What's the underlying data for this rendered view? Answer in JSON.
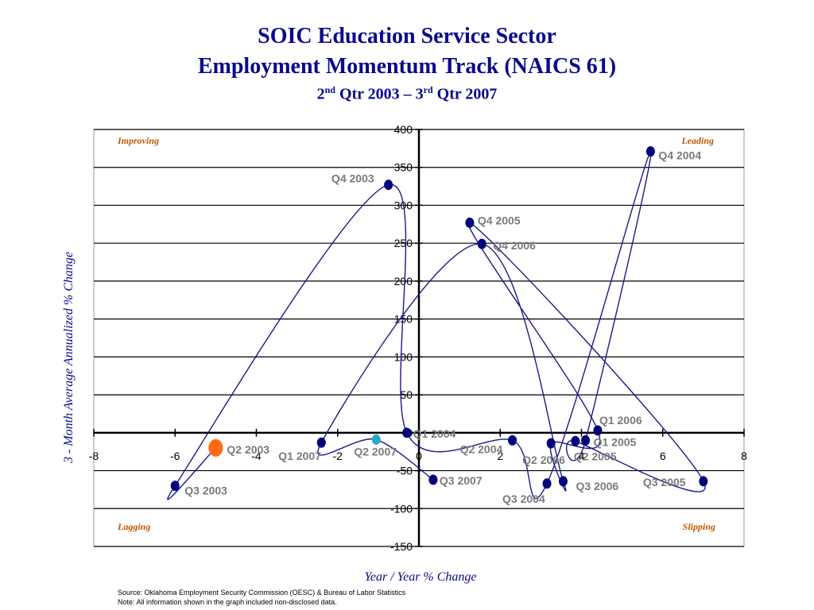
{
  "title": {
    "line1": "SOIC Education Service Sector",
    "line2": "Employment Momentum Track (NAICS 61)",
    "line3_a": "2",
    "line3_sup_a": "nd",
    "line3_b": " Qtr 2003 – 3",
    "line3_sup_b": "rd",
    "line3_c": " Qtr 2007"
  },
  "chart_data": {
    "type": "scatter",
    "xlabel": "Year / Year % Change",
    "ylabel": "3 - Month Average Annualized % Change",
    "xlim": [
      -8,
      8
    ],
    "ylim": [
      -150,
      400
    ],
    "x_ticks": [
      -8,
      -6,
      -4,
      -2,
      0,
      2,
      4,
      6,
      8
    ],
    "y_ticks": [
      400,
      350,
      300,
      250,
      200,
      150,
      100,
      50,
      0,
      -50,
      -100,
      -150
    ],
    "grid": "horizontal",
    "quadrant_labels": {
      "top_left": "Improving",
      "top_right": "Leading",
      "bottom_left": "Lagging",
      "bottom_right": "Slipping"
    },
    "points": [
      {
        "label": "Q2 2003",
        "x": -5.0,
        "y": -20,
        "color": "#ff6a13"
      },
      {
        "label": "Q3 2003",
        "x": -6.0,
        "y": -70,
        "color": "#00007a"
      },
      {
        "label": "Q4 2003",
        "x": -0.75,
        "y": 327,
        "color": "#00007a"
      },
      {
        "label": "Q1 2004",
        "x": -0.3,
        "y": 0,
        "color": "#00007a"
      },
      {
        "label": "Q2 2004",
        "x": 2.3,
        "y": -10,
        "color": "#00007a"
      },
      {
        "label": "Q3 2004",
        "x": 3.15,
        "y": -67,
        "color": "#00007a"
      },
      {
        "label": "Q4 2004",
        "x": 5.7,
        "y": 371,
        "color": "#00007a"
      },
      {
        "label": "Q1 2005",
        "x": 4.1,
        "y": -10,
        "color": "#00007a"
      },
      {
        "label": "Q2 2005",
        "x": 3.85,
        "y": -11,
        "color": "#00007a"
      },
      {
        "label": "Q3 2005",
        "x": 7.0,
        "y": -64,
        "color": "#00007a"
      },
      {
        "label": "Q4 2005",
        "x": 1.25,
        "y": 277,
        "color": "#00007a"
      },
      {
        "label": "Q1 2006",
        "x": 4.4,
        "y": 3,
        "color": "#00007a"
      },
      {
        "label": "Q2 2006",
        "x": 3.25,
        "y": -14,
        "color": "#00007a"
      },
      {
        "label": "Q3 2006",
        "x": 3.55,
        "y": -64,
        "color": "#00007a"
      },
      {
        "label": "Q4 2006",
        "x": 1.55,
        "y": 249,
        "color": "#00007a"
      },
      {
        "label": "Q1 2007",
        "x": -2.4,
        "y": -13,
        "color": "#00007a"
      },
      {
        "label": "Q2 2007",
        "x": -1.05,
        "y": -9,
        "color": "#2aa6c8"
      },
      {
        "label": "Q3 2007",
        "x": 0.35,
        "y": -62,
        "color": "#00007a"
      }
    ]
  },
  "source_note": "Source:  Oklahoma Employment Security Commission (OESC) & Bureau of Labor Statistics",
  "disclosure_note": "Note: All information shown in the graph included non-disclosed data."
}
